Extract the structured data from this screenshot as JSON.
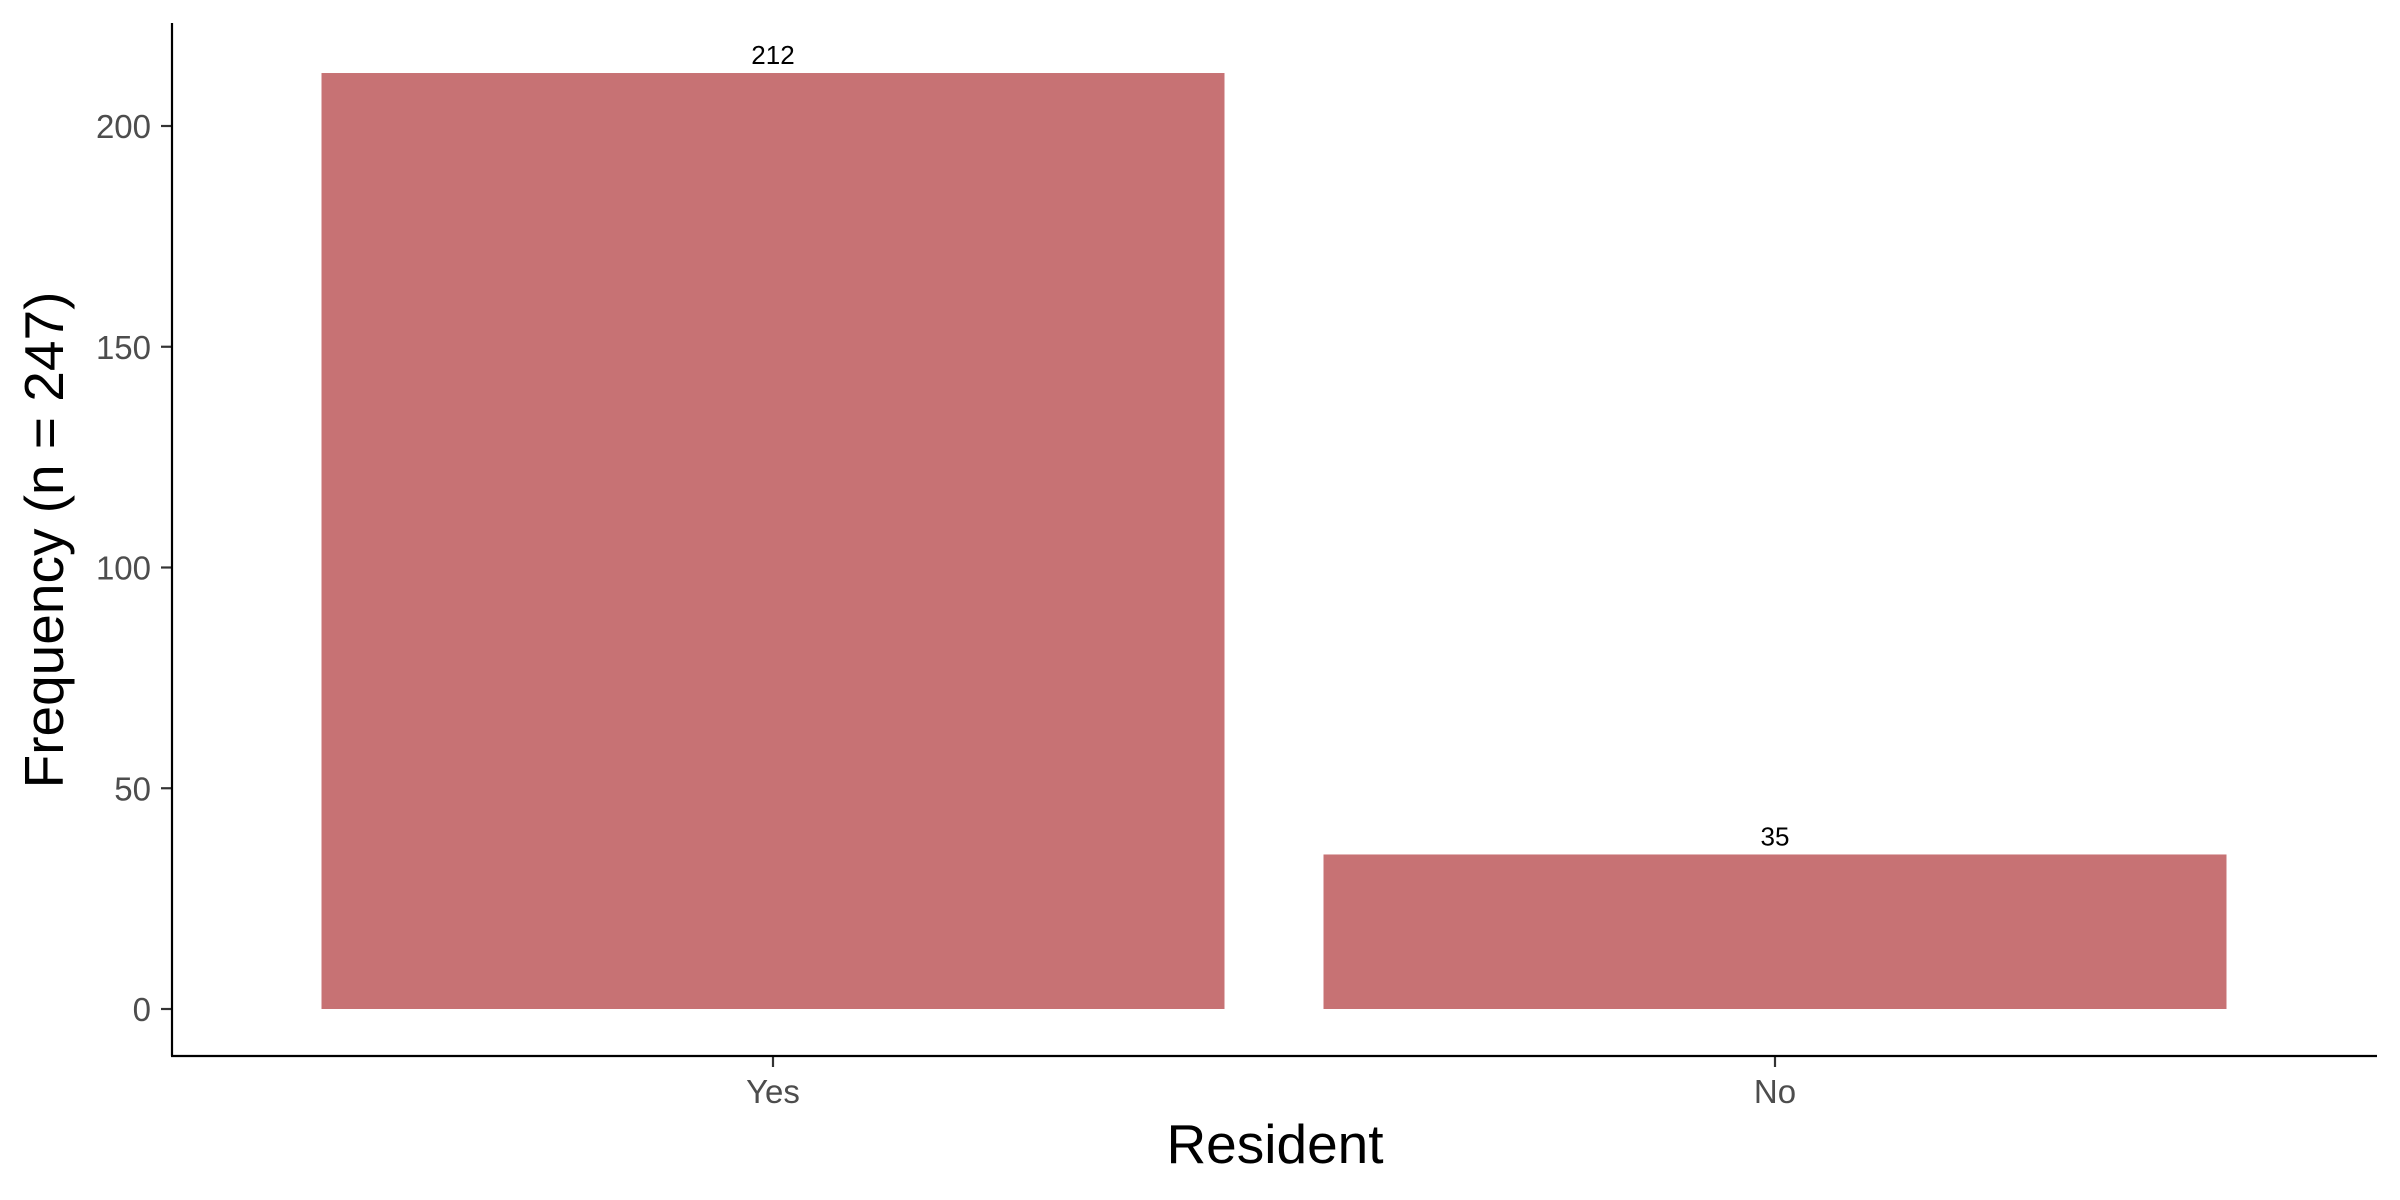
{
  "chart_data": {
    "type": "bar",
    "categories": [
      "Yes",
      "No"
    ],
    "values": [
      212,
      35
    ],
    "data_labels": [
      "212",
      "35"
    ],
    "xlabel": "Resident",
    "ylabel": "Frequency (n = 247)",
    "ylim": [
      0,
      221
    ],
    "yticks": [
      0,
      50,
      100,
      150,
      200
    ],
    "ytick_labels": [
      "0",
      "50",
      "100",
      "150",
      "200"
    ],
    "grid": false,
    "bar_color": "#c77274"
  }
}
